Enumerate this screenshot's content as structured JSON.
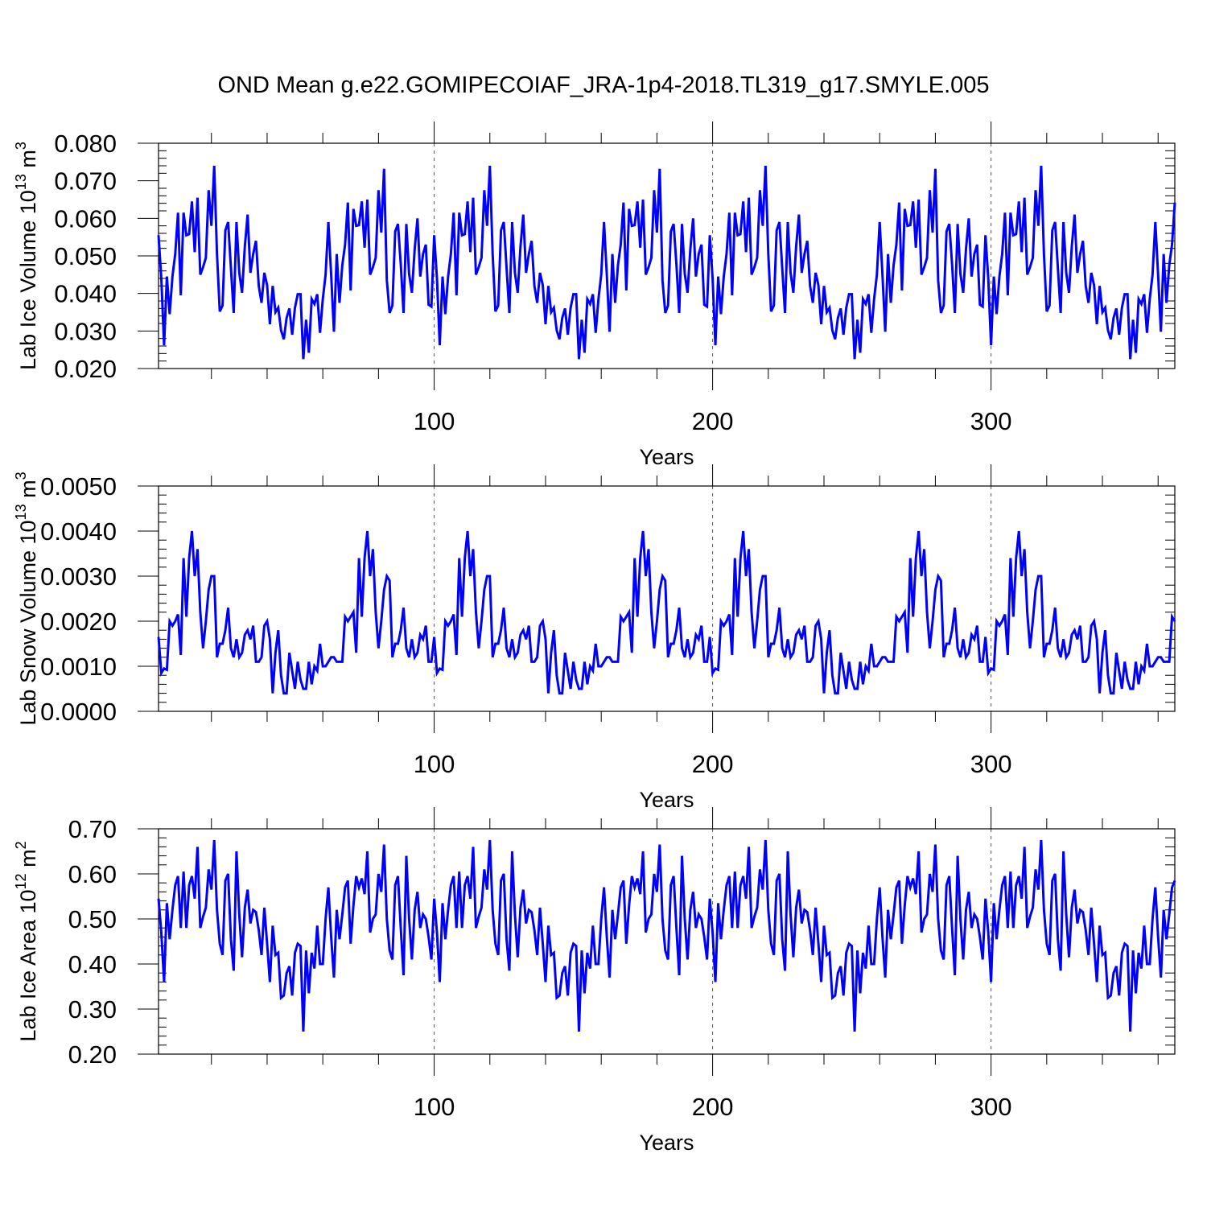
{
  "title": "OND Mean g.e22.GOMIPECOIAF_JRA-1p4-2018.TL319_g17.SMYLE.005",
  "colors": {
    "series": "#0000ff",
    "axis": "#000000",
    "grid": "#555555"
  },
  "chart_data": [
    {
      "type": "line",
      "ylabel": "Lab Ice Volume 10",
      "ylabel_exp": "13",
      "ylabel_unit": " m",
      "ylabel_unit_exp": "3",
      "xlabel": "Years",
      "xlim": [
        1,
        366
      ],
      "ylim": [
        0.02,
        0.08
      ],
      "yticks": [
        0.02,
        0.03,
        0.04,
        0.05,
        0.06,
        0.07,
        0.08
      ],
      "ytick_labels": [
        "0.020",
        "0.030",
        "0.040",
        "0.050",
        "0.060",
        "0.070",
        "0.080"
      ],
      "xticks": [
        100,
        200,
        300
      ],
      "xtick_labels": [
        "100",
        "200",
        "300"
      ],
      "grid_x": [
        100,
        200,
        300
      ],
      "cycle_values": [
        0.0555,
        0.044,
        0.0262,
        0.0445,
        0.0345,
        0.0445,
        0.0505,
        0.0615,
        0.0395,
        0.0615,
        0.0555,
        0.0558,
        0.0645,
        0.051,
        0.0655,
        0.045,
        0.047,
        0.0495,
        0.0675,
        0.058,
        0.074,
        0.0505,
        0.0352,
        0.0368,
        0.0568,
        0.059,
        0.0468,
        0.0348,
        0.059,
        0.0455,
        0.0402,
        0.0525,
        0.061,
        0.0455,
        0.0505,
        0.054,
        0.042,
        0.0375,
        0.0455,
        0.0422,
        0.0318,
        0.042,
        0.035,
        0.0362,
        0.0302,
        0.0278,
        0.0335,
        0.036,
        0.029,
        0.0362,
        0.0398,
        0.0398,
        0.0225,
        0.033,
        0.0242,
        0.0385,
        0.0372,
        0.0398,
        0.0295,
        0.0385,
        0.045,
        0.059,
        0.045,
        0.0298,
        0.0505,
        0.0375,
        0.0475,
        0.053,
        0.0642,
        0.0408,
        0.0625,
        0.058,
        0.0582,
        0.0645,
        0.0522,
        0.065,
        0.045,
        0.047,
        0.0495,
        0.0675,
        0.0562,
        0.0732,
        0.0435,
        0.0348,
        0.0368,
        0.0565,
        0.0585,
        0.0478,
        0.0348,
        0.0585,
        0.0452,
        0.0402,
        0.0518,
        0.06,
        0.0445,
        0.0505,
        0.053,
        0.037,
        0.0365
      ]
    },
    {
      "type": "line",
      "ylabel": "Lab Snow Volume 10",
      "ylabel_exp": "13",
      "ylabel_unit": " m",
      "ylabel_unit_exp": "3",
      "xlabel": "Years",
      "xlim": [
        1,
        366
      ],
      "ylim": [
        0.0,
        0.005
      ],
      "yticks": [
        0.0,
        0.001,
        0.002,
        0.003,
        0.004,
        0.005
      ],
      "ytick_labels": [
        "0.0000",
        "0.0010",
        "0.0020",
        "0.0030",
        "0.0040",
        "0.0050"
      ],
      "xticks": [
        100,
        200,
        300
      ],
      "xtick_labels": [
        "100",
        "200",
        "300"
      ],
      "grid_x": [
        100,
        200,
        300
      ],
      "cycle_values": [
        0.00165,
        0.00085,
        0.00095,
        0.00092,
        0.002,
        0.0019,
        0.002,
        0.00215,
        0.00125,
        0.0034,
        0.0021,
        0.0034,
        0.004,
        0.003,
        0.0036,
        0.0022,
        0.0014,
        0.002,
        0.0027,
        0.003,
        0.003,
        0.0012,
        0.0015,
        0.0015,
        0.0018,
        0.0023,
        0.0014,
        0.0012,
        0.0016,
        0.0012,
        0.0013,
        0.0017,
        0.0018,
        0.0016,
        0.0019,
        0.0011,
        0.0011,
        0.0012,
        0.0019,
        0.002,
        0.0016,
        0.0004,
        0.0013,
        0.0018,
        0.0008,
        0.0004,
        0.0004,
        0.0013,
        0.0009,
        0.0005,
        0.0011,
        0.0007,
        0.0005,
        0.0005,
        0.0011,
        0.0006,
        0.001,
        0.0009,
        0.0015,
        0.001,
        0.001,
        0.0011,
        0.0012,
        0.0012,
        0.0011,
        0.0011,
        0.0011,
        0.0021,
        0.002,
        0.0021,
        0.0022,
        0.0013,
        0.0034,
        0.0021,
        0.0034,
        0.004,
        0.003,
        0.0036,
        0.0022,
        0.0014,
        0.002,
        0.0027,
        0.003,
        0.0029,
        0.0012,
        0.0015,
        0.0015,
        0.0018,
        0.0023,
        0.0014,
        0.0012,
        0.0016,
        0.0012,
        0.0013,
        0.0017,
        0.0016,
        0.0019,
        0.0011,
        0.0011
      ]
    },
    {
      "type": "line",
      "ylabel": "Lab Ice Area 10",
      "ylabel_exp": "12",
      "ylabel_unit": " m",
      "ylabel_unit_exp": "2",
      "xlabel": "Years",
      "xlim": [
        1,
        366
      ],
      "ylim": [
        0.2,
        0.7
      ],
      "yticks": [
        0.2,
        0.3,
        0.4,
        0.5,
        0.6,
        0.7
      ],
      "ytick_labels": [
        "0.20",
        "0.30",
        "0.40",
        "0.50",
        "0.60",
        "0.70"
      ],
      "xticks": [
        100,
        200,
        300
      ],
      "xtick_labels": [
        "100",
        "200",
        "300"
      ],
      "grid_x": [
        100,
        200,
        300
      ],
      "cycle_values": [
        0.545,
        0.47,
        0.36,
        0.535,
        0.455,
        0.52,
        0.575,
        0.595,
        0.48,
        0.605,
        0.48,
        0.575,
        0.595,
        0.545,
        0.66,
        0.48,
        0.505,
        0.525,
        0.61,
        0.565,
        0.675,
        0.52,
        0.445,
        0.42,
        0.585,
        0.6,
        0.455,
        0.385,
        0.65,
        0.51,
        0.415,
        0.525,
        0.565,
        0.49,
        0.52,
        0.515,
        0.475,
        0.42,
        0.525,
        0.445,
        0.36,
        0.485,
        0.42,
        0.425,
        0.325,
        0.33,
        0.38,
        0.395,
        0.33,
        0.425,
        0.445,
        0.44,
        0.25,
        0.43,
        0.335,
        0.425,
        0.39,
        0.485,
        0.4,
        0.4,
        0.5,
        0.57,
        0.46,
        0.37,
        0.52,
        0.455,
        0.51,
        0.57,
        0.585,
        0.445,
        0.53,
        0.595,
        0.57,
        0.59,
        0.555,
        0.65,
        0.47,
        0.5,
        0.51,
        0.6,
        0.56,
        0.665,
        0.5,
        0.43,
        0.41,
        0.575,
        0.595,
        0.48,
        0.375,
        0.64,
        0.5,
        0.41,
        0.52,
        0.56,
        0.48,
        0.51,
        0.5,
        0.46,
        0.41
      ]
    }
  ]
}
